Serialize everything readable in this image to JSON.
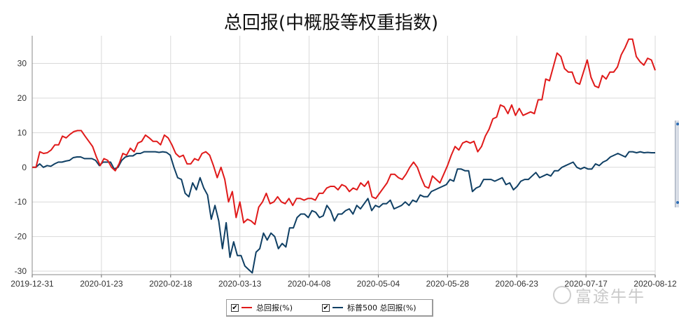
{
  "chart_data": {
    "type": "line",
    "title": "总回报(中概股等权重指数)",
    "xlabel": "",
    "ylabel": "",
    "ylim": [
      -31,
      38
    ],
    "yticks": [
      30,
      20,
      10,
      0,
      -10,
      -20,
      -30
    ],
    "xtick_labels": [
      "2019-12-31",
      "2020-01-23",
      "2020-02-18",
      "2020-03-13",
      "2020-04-08",
      "2020-05-04",
      "2020-05-28",
      "2020-06-23",
      "2020-07-17",
      "2020-08-12"
    ],
    "grid": true,
    "legend_position": "bottom-center",
    "series": [
      {
        "name": "总回报(%)",
        "color": "#e01a1a",
        "values": [
          0,
          0,
          4.5,
          4,
          4.2,
          5,
          6.5,
          6.5,
          9,
          8.5,
          9.5,
          10.3,
          10.6,
          10.6,
          9,
          7.5,
          6,
          3,
          0.5,
          2.5,
          2,
          0,
          -1,
          1,
          4,
          3.5,
          5.5,
          4.5,
          7,
          7.5,
          9.3,
          8.5,
          7.5,
          7.5,
          6.5,
          9.3,
          8.5,
          6.5,
          4,
          3,
          3.5,
          1,
          1,
          2.5,
          2,
          4,
          4.5,
          3.5,
          0.5,
          -3,
          0,
          -3.5,
          -10,
          -7,
          -14.5,
          -10,
          -16,
          -15,
          -15.5,
          -16.5,
          -11.5,
          -10,
          -7.5,
          -10.5,
          -10,
          -8.5,
          -10,
          -10.5,
          -9,
          -11,
          -9,
          -9,
          -9.5,
          -9,
          -9,
          -9.5,
          -7.5,
          -7.5,
          -6,
          -5.5,
          -5.5,
          -6.5,
          -5,
          -5.5,
          -7,
          -6,
          -6.5,
          -4.5,
          -5.5,
          -4,
          -8.5,
          -9,
          -7.5,
          -6,
          -4.5,
          -2,
          -2,
          -3,
          -3.5,
          -2,
          0,
          1.5,
          0,
          -3,
          -5.5,
          -6,
          -2.5,
          -3.5,
          -4.5,
          -2,
          0.5,
          3.5,
          6,
          5,
          7,
          7.5,
          7,
          7.5,
          4.5,
          6,
          9,
          11,
          14,
          14.5,
          18,
          17.5,
          15.5,
          18,
          15,
          17,
          15,
          15.5,
          16,
          15.5,
          19.5,
          19.5,
          25.5,
          25,
          29,
          33,
          32,
          28.5,
          27.5,
          27.5,
          24.5,
          24,
          27.5,
          31,
          26,
          23.5,
          23,
          26.5,
          25.5,
          27.5,
          27.5,
          29,
          32.5,
          34.5,
          37,
          37,
          32,
          30.5,
          29.5,
          31.5,
          31,
          28
        ]
      },
      {
        "name": "标普500 总回报(%)",
        "color": "#0f3f64",
        "values": [
          0,
          0,
          1,
          0,
          0.5,
          0.3,
          1,
          1.5,
          1.5,
          1.8,
          2,
          2.8,
          3,
          3,
          2.5,
          2.5,
          2.5,
          2,
          0.5,
          1.5,
          1.5,
          1.5,
          -0.5,
          0,
          2,
          3,
          3.3,
          3.3,
          4,
          4,
          4.5,
          4.5,
          4.5,
          4.5,
          4.3,
          4.5,
          4.3,
          3.5,
          0,
          -3,
          -3.5,
          -7.5,
          -8.5,
          -4.5,
          -6.5,
          -3,
          -6,
          -8,
          -15,
          -11,
          -15.5,
          -23.5,
          -16,
          -26,
          -21.5,
          -25.5,
          -25.5,
          -28.5,
          -29.5,
          -30.5,
          -24.5,
          -23.5,
          -19,
          -21,
          -19,
          -20,
          -23.5,
          -22,
          -23,
          -17.5,
          -17.5,
          -14.5,
          -13.5,
          -13.5,
          -14.5,
          -12.5,
          -13,
          -14.5,
          -14,
          -11,
          -12.5,
          -15.5,
          -13.5,
          -13.5,
          -12.5,
          -12,
          -13.5,
          -11,
          -12,
          -10.5,
          -9,
          -12.5,
          -11,
          -11.5,
          -10.5,
          -10.5,
          -9.5,
          -12,
          -11.5,
          -11,
          -10,
          -11,
          -9.5,
          -10,
          -8,
          -8.5,
          -8.5,
          -7,
          -6.5,
          -6,
          -5.5,
          -5,
          -3.5,
          -4,
          -0.5,
          -0.5,
          -1,
          -1,
          -7,
          -6,
          -5.5,
          -3.5,
          -3.5,
          -3.5,
          -4,
          -3.5,
          -3,
          -5,
          -4.5,
          -6.5,
          -5.5,
          -4,
          -3.5,
          -3.5,
          -2.5,
          -1.5,
          -3,
          -2.5,
          -2,
          -2.5,
          -1,
          -1,
          0,
          0.5,
          1,
          1.5,
          0,
          -0.5,
          0,
          -0.5,
          -0.5,
          1,
          0.5,
          1.5,
          2,
          3,
          3.5,
          4,
          3.5,
          3,
          4.5,
          4.5,
          4.2,
          4.5,
          4.2,
          4.3,
          4.2,
          4.2
        ]
      }
    ]
  },
  "legend": {
    "items": [
      {
        "label": "总回报(%)",
        "checked": "✔"
      },
      {
        "label": "标普500 总回报(%)",
        "checked": "✔"
      }
    ]
  },
  "watermark": {
    "text": "富途牛牛"
  }
}
